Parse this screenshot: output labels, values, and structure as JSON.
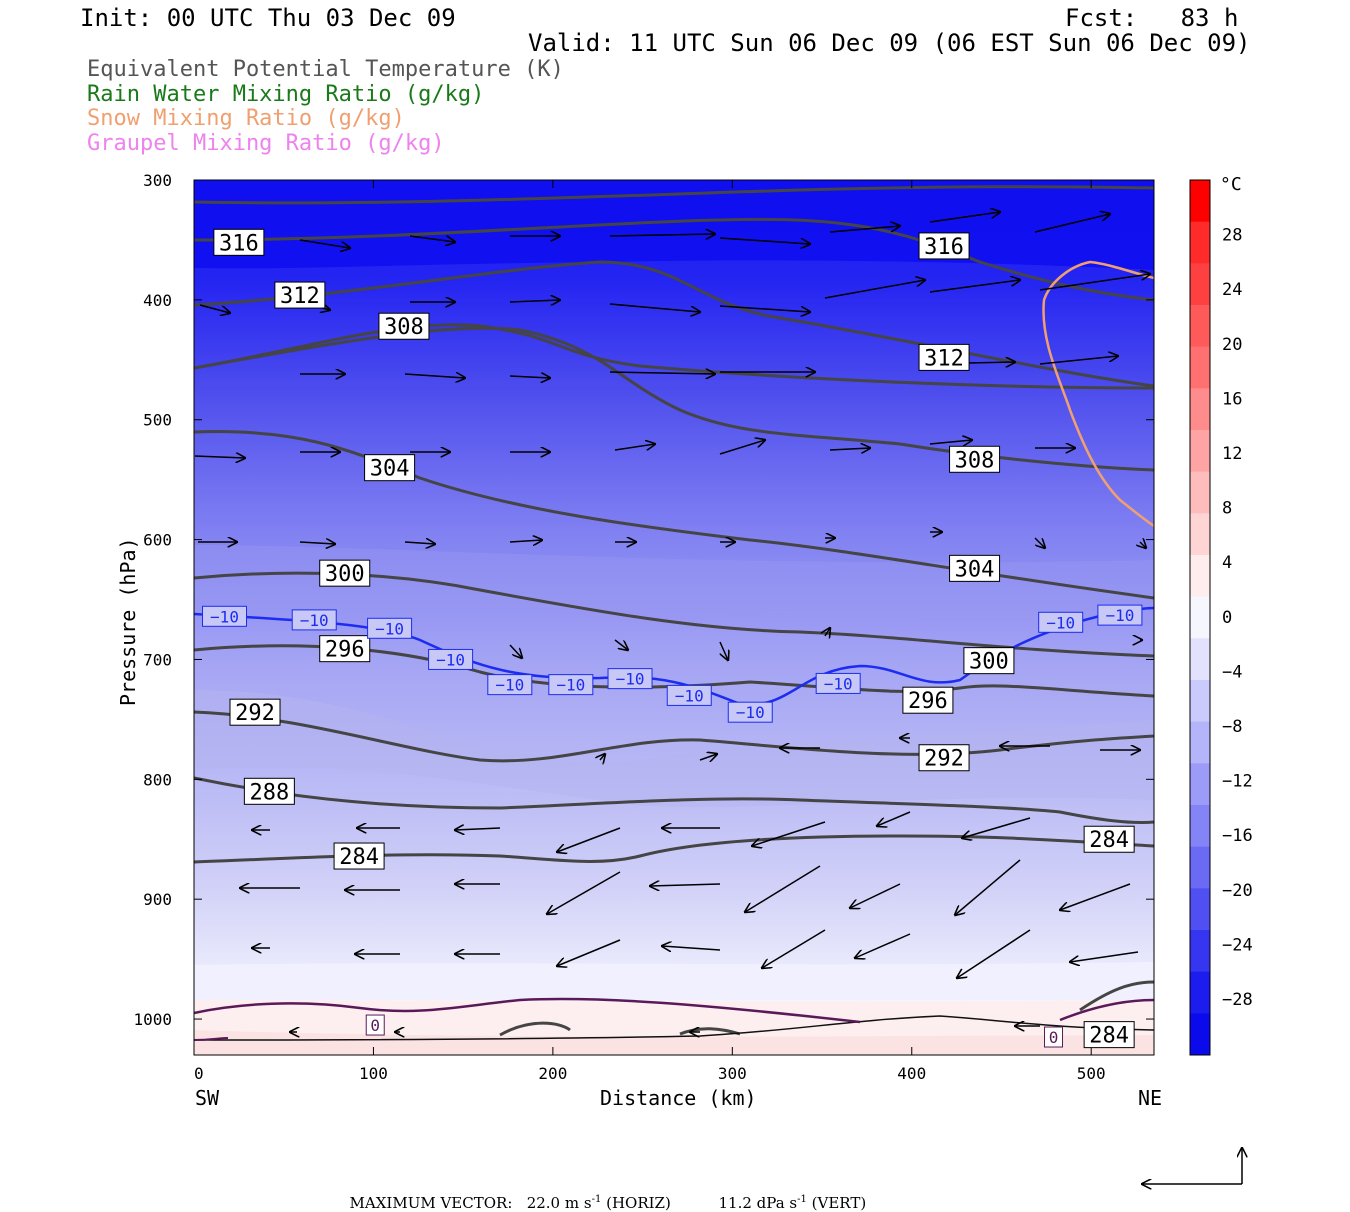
{
  "header": {
    "init": "Init: 00 UTC Thu 03 Dec 09",
    "fcst": "Fcst:   83 h",
    "valid": "Valid: 11 UTC Sun 06 Dec 09 (06 EST Sun 06 Dec 09)"
  },
  "legend": [
    {
      "label": "Equivalent Potential Temperature (K)",
      "color": "#555555"
    },
    {
      "label": "Rain Water Mixing Ratio (g/kg)",
      "color": "#1a7a1a"
    },
    {
      "label": "Snow Mixing Ratio (g/kg)",
      "color": "#f0a070"
    },
    {
      "label": "Graupel Mixing Ratio (g/kg)",
      "color": "#ee82ee"
    }
  ],
  "axes": {
    "xlabel": "Distance (km)",
    "ylabel": "Pressure (hPa)",
    "left_end": "SW",
    "right_end": "NE"
  },
  "colorbar": {
    "unit": "°C",
    "ticks": [
      "28",
      "24",
      "20",
      "16",
      "12",
      "8",
      "4",
      "0",
      "−4",
      "−8",
      "−12",
      "−16",
      "−20",
      "−24",
      "−28"
    ]
  },
  "footer": {
    "max_vector_label": "MAXIMUM VECTOR:",
    "horiz_value": "22.0 m s",
    "horiz_unit": "(HORIZ)",
    "vert_value": "11.2 dPa s",
    "vert_unit": "(VERT)",
    "exp": "-1"
  },
  "chart_data": {
    "type": "contour",
    "x_range": [
      0,
      535
    ],
    "y_range": [
      1030,
      300
    ],
    "x_ticks": [
      0,
      100,
      200,
      300,
      400,
      500
    ],
    "y_ticks": [
      300,
      400,
      500,
      600,
      700,
      800,
      900,
      1000
    ],
    "y_scale": "linear",
    "theta_e_labels": [
      {
        "value": "316",
        "x": 25,
        "p": 352
      },
      {
        "value": "316",
        "x": 418,
        "p": 355
      },
      {
        "value": "312",
        "x": 59,
        "p": 396
      },
      {
        "value": "312",
        "x": 418,
        "p": 448
      },
      {
        "value": "308",
        "x": 117,
        "p": 422
      },
      {
        "value": "308",
        "x": 435,
        "p": 533
      },
      {
        "value": "304",
        "x": 109,
        "p": 540
      },
      {
        "value": "304",
        "x": 435,
        "p": 624
      },
      {
        "value": "300",
        "x": 84,
        "p": 628
      },
      {
        "value": "300",
        "x": 443,
        "p": 701
      },
      {
        "value": "296",
        "x": 84,
        "p": 691
      },
      {
        "value": "296",
        "x": 409,
        "p": 734
      },
      {
        "value": "292",
        "x": 34,
        "p": 744
      },
      {
        "value": "292",
        "x": 418,
        "p": 782
      },
      {
        "value": "288",
        "x": 42,
        "p": 810
      },
      {
        "value": "284",
        "x": 92,
        "p": 864
      },
      {
        "value": "284",
        "x": 510,
        "p": 850
      },
      {
        "value": "284",
        "x": 510,
        "p": 1013
      }
    ],
    "temperature_labels": [
      {
        "value": "−10",
        "x": 17,
        "p": 664
      },
      {
        "value": "−10",
        "x": 67,
        "p": 667
      },
      {
        "value": "−10",
        "x": 109,
        "p": 674
      },
      {
        "value": "−10",
        "x": 143,
        "p": 700
      },
      {
        "value": "−10",
        "x": 176,
        "p": 721
      },
      {
        "value": "−10",
        "x": 210,
        "p": 721
      },
      {
        "value": "−10",
        "x": 243,
        "p": 716
      },
      {
        "value": "−10",
        "x": 276,
        "p": 730
      },
      {
        "value": "−10",
        "x": 310,
        "p": 744
      },
      {
        "value": "−10",
        "x": 359,
        "p": 720
      },
      {
        "value": "−10",
        "x": 483,
        "p": 669
      },
      {
        "value": "−10",
        "x": 516,
        "p": 663
      },
      {
        "value": "0",
        "x": 101,
        "p": 1005
      },
      {
        "value": "0",
        "x": 479,
        "p": 1015
      }
    ]
  }
}
